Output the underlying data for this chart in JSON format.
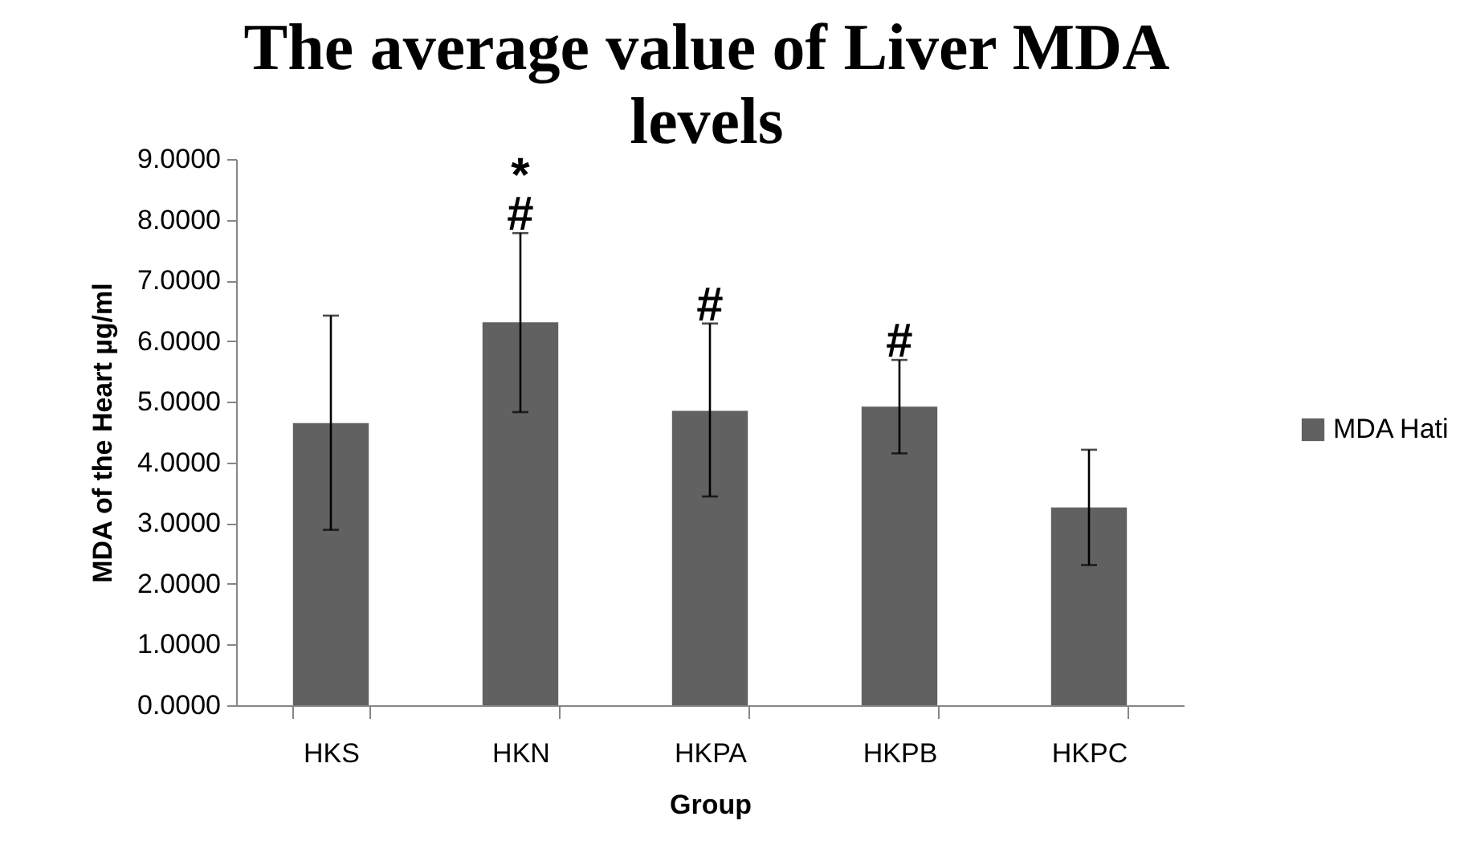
{
  "chart_data": {
    "type": "bar",
    "title": "The average value of Liver MDA levels",
    "xlabel": "Group",
    "ylabel": "MDA of the Heart µg/ml",
    "categories": [
      "HKS",
      "HKN",
      "HKPA",
      "HKPB",
      "HKPC"
    ],
    "series": [
      {
        "name": "MDA Hati",
        "color": "#616161",
        "values": [
          4.65,
          6.31,
          4.85,
          4.92,
          3.26
        ],
        "errors": [
          [
            2.89,
            6.42
          ],
          [
            4.83,
            7.78
          ],
          [
            3.44,
            6.29
          ],
          [
            4.15,
            5.69
          ],
          [
            2.31,
            4.21
          ]
        ]
      }
    ],
    "ylim": [
      0,
      9
    ],
    "yticks": [
      {
        "value": 0,
        "label": "0.0000"
      },
      {
        "value": 1,
        "label": "1.0000"
      },
      {
        "value": 2,
        "label": "2.0000"
      },
      {
        "value": 3,
        "label": "3.0000"
      },
      {
        "value": 4,
        "label": "4.0000"
      },
      {
        "value": 5,
        "label": "5.0000"
      },
      {
        "value": 6,
        "label": "6.0000"
      },
      {
        "value": 7,
        "label": "7.0000"
      },
      {
        "value": 8,
        "label": "8.0000"
      },
      {
        "value": 9,
        "label": "9.0000"
      }
    ],
    "annotations": [
      {
        "text": "*",
        "x": "HKN",
        "y": 7.78
      },
      {
        "text": "#",
        "x": "HKN",
        "y": 7.78
      },
      {
        "text": "#",
        "x": "HKPA",
        "y": 6.29
      },
      {
        "text": "#",
        "x": "HKPB",
        "y": 5.69
      }
    ],
    "legend": "right",
    "grid": false
  }
}
